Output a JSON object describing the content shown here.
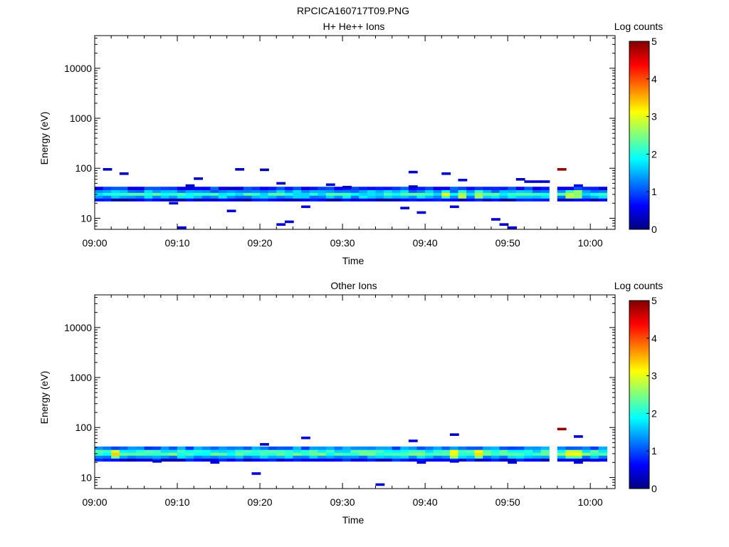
{
  "figure": {
    "title": "RPCICA160717T09.PNG"
  },
  "colormap": [
    "#00007f",
    "#0000ff",
    "#007fff",
    "#00ffff",
    "#7fff7f",
    "#ffff00",
    "#ff7f00",
    "#ff0000",
    "#7f0000"
  ],
  "chart_data": [
    {
      "type": "heatmap",
      "title": "H+ He++ Ions",
      "xlabel": "Time",
      "ylabel": "Energy (eV)",
      "x_scale": "time",
      "y_scale": "log",
      "xlim": [
        "09:00",
        "10:03"
      ],
      "ylim": [
        6,
        45000
      ],
      "x_ticks": [
        "09:00",
        "09:10",
        "09:20",
        "09:30",
        "09:40",
        "09:50",
        "10:00"
      ],
      "y_ticks": [
        10,
        100,
        1000,
        10000
      ],
      "y_tick_labels": [
        "10",
        "100",
        "1000",
        "10000"
      ],
      "colorbar": {
        "label": "Log counts",
        "range": [
          0,
          5
        ],
        "ticks": [
          "0",
          "1",
          "2",
          "3",
          "4",
          "5"
        ]
      },
      "band": {
        "rows_eV": [
          {
            "energy": 23.5,
            "base": 0.5
          },
          {
            "energy": 26.8,
            "base": 1.5
          },
          {
            "energy": 30.5,
            "base": 2.0
          },
          {
            "energy": 34.8,
            "base": 1.4
          },
          {
            "energy": 39.5,
            "base": 0.8
          }
        ],
        "segments": [
          [
            "09:00",
            "09:55"
          ],
          [
            "09:56",
            "10:02"
          ]
        ],
        "enhanced": [
          "09:42",
          "09:44",
          "09:46",
          "09:57",
          "09:58"
        ]
      },
      "points": [
        {
          "time": "09:01",
          "energy": 95,
          "value": 0.3
        },
        {
          "time": "09:03",
          "energy": 78,
          "value": 0.3
        },
        {
          "time": "09:09",
          "energy": 20,
          "value": 0.4
        },
        {
          "time": "09:10",
          "energy": 6.5,
          "value": 0.4
        },
        {
          "time": "09:11",
          "energy": 45,
          "value": 0.3
        },
        {
          "time": "09:12",
          "energy": 62,
          "value": 0.3
        },
        {
          "time": "09:16",
          "energy": 14,
          "value": 0.4
        },
        {
          "time": "09:17",
          "energy": 95,
          "value": 0.3
        },
        {
          "time": "09:20",
          "energy": 93,
          "value": 0.2
        },
        {
          "time": "09:22",
          "energy": 50,
          "value": 0.3
        },
        {
          "time": "09:22",
          "energy": 7.5,
          "value": 0.4
        },
        {
          "time": "09:23",
          "energy": 8.5,
          "value": 0.4
        },
        {
          "time": "09:25",
          "energy": 17,
          "value": 0.4
        },
        {
          "time": "09:28",
          "energy": 47,
          "value": 0.4
        },
        {
          "time": "09:30",
          "energy": 42,
          "value": 0.3
        },
        {
          "time": "09:37",
          "energy": 16,
          "value": 0.4
        },
        {
          "time": "09:38",
          "energy": 84,
          "value": 0.4
        },
        {
          "time": "09:38",
          "energy": 43,
          "value": 0.3
        },
        {
          "time": "09:39",
          "energy": 13,
          "value": 0.4
        },
        {
          "time": "09:42",
          "energy": 78,
          "value": 0.4
        },
        {
          "time": "09:43",
          "energy": 17,
          "value": 0.4
        },
        {
          "time": "09:44",
          "energy": 58,
          "value": 0.4
        },
        {
          "time": "09:48",
          "energy": 9.5,
          "value": 0.4
        },
        {
          "time": "09:49",
          "energy": 7.5,
          "value": 0.4
        },
        {
          "time": "09:50",
          "energy": 6.5,
          "value": 0.4
        },
        {
          "time": "09:51",
          "energy": 60,
          "value": 0.3
        },
        {
          "time": "09:52",
          "energy": 54,
          "value": 0.4
        },
        {
          "time": "09:53",
          "energy": 54,
          "value": 0.4
        },
        {
          "time": "09:54",
          "energy": 54,
          "value": 0.4
        },
        {
          "time": "09:56",
          "energy": 95,
          "value": 4.9
        },
        {
          "time": "09:58",
          "energy": 45,
          "value": 0.5
        }
      ]
    },
    {
      "type": "heatmap",
      "title": "Other Ions",
      "xlabel": "Time",
      "ylabel": "Energy (eV)",
      "x_scale": "time",
      "y_scale": "log",
      "xlim": [
        "09:00",
        "10:03"
      ],
      "ylim": [
        6,
        45000
      ],
      "x_ticks": [
        "09:00",
        "09:10",
        "09:20",
        "09:30",
        "09:40",
        "09:50",
        "10:00"
      ],
      "y_ticks": [
        10,
        100,
        1000,
        10000
      ],
      "y_tick_labels": [
        "10",
        "100",
        "1000",
        "10000"
      ],
      "colorbar": {
        "label": "Log counts",
        "range": [
          0,
          5
        ],
        "ticks": [
          "0",
          "1",
          "2",
          "3",
          "4",
          "5"
        ]
      },
      "band": {
        "rows_eV": [
          {
            "energy": 22.5,
            "base": 0.6
          },
          {
            "energy": 25.8,
            "base": 1.5
          },
          {
            "energy": 29.5,
            "base": 2.2
          },
          {
            "energy": 33.8,
            "base": 2.0
          },
          {
            "energy": 38.5,
            "base": 1.2
          }
        ],
        "segments": [
          [
            "09:00",
            "09:55"
          ],
          [
            "09:56",
            "10:02"
          ]
        ],
        "enhanced": [
          "09:02",
          "09:43",
          "09:46",
          "09:57",
          "09:58"
        ]
      },
      "points": [
        {
          "time": "09:07",
          "energy": 21,
          "value": 0.4
        },
        {
          "time": "09:14",
          "energy": 20,
          "value": 0.4
        },
        {
          "time": "09:19",
          "energy": 12,
          "value": 0.4
        },
        {
          "time": "09:20",
          "energy": 46,
          "value": 0.3
        },
        {
          "time": "09:25",
          "energy": 62,
          "value": 0.4
        },
        {
          "time": "09:34",
          "energy": 7.2,
          "value": 0.4
        },
        {
          "time": "09:38",
          "energy": 54,
          "value": 0.4
        },
        {
          "time": "09:39",
          "energy": 20,
          "value": 0.4
        },
        {
          "time": "09:43",
          "energy": 72,
          "value": 0.3
        },
        {
          "time": "09:43",
          "energy": 21,
          "value": 0.5
        },
        {
          "time": "09:50",
          "energy": 20,
          "value": 0.4
        },
        {
          "time": "09:56",
          "energy": 93,
          "value": 4.9
        },
        {
          "time": "09:58",
          "energy": 66,
          "value": 0.4
        },
        {
          "time": "09:58",
          "energy": 20,
          "value": 0.4
        },
        {
          "time": "10:00",
          "energy": 22,
          "value": 0.5
        }
      ]
    }
  ]
}
